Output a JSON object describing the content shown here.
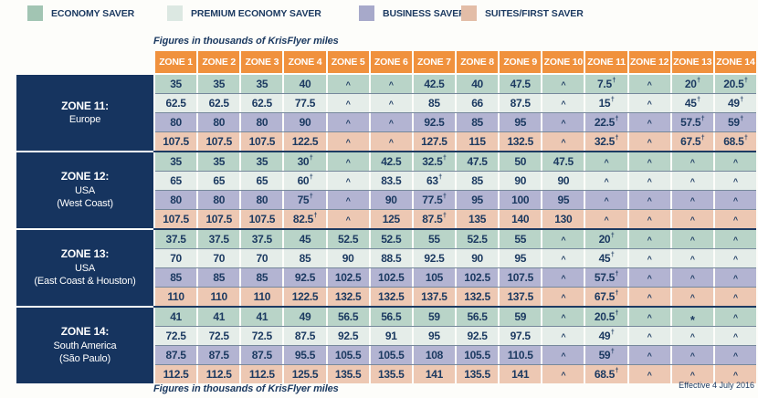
{
  "legend": {
    "items": [
      {
        "key": "economy",
        "label": "ECONOMY SAVER",
        "color": "#a2c5b3"
      },
      {
        "key": "premium_economy",
        "label": "PREMIUM ECONOMY SAVER",
        "color": "#dce8e2"
      },
      {
        "key": "business",
        "label": "BUSINESS SAVER",
        "color": "#a7a9ca"
      },
      {
        "key": "suites_first",
        "label": "SUITES/FIRST SAVER",
        "color": "#e3bda7"
      }
    ]
  },
  "notes": {
    "top": "Figures in thousands of KrisFlyer miles",
    "bottom": "Figures in thousands of KrisFlyer miles",
    "effective": "Effective 4 July 2016"
  },
  "colors": {
    "header_bg": "#f0913d",
    "header_text": "#ffffff",
    "zone_label_bg": "#16345f",
    "cell_text": "#1c3a61",
    "row_separator": "#76889b",
    "group_separator": "#1d3a62",
    "cells": {
      "economy": "#b9d4c8",
      "premium_economy": "#e5ede9",
      "business": "#b3b4d2",
      "suites_first": "#edc8b3"
    }
  },
  "table": {
    "column_headers": [
      "ZONE 1",
      "ZONE 2",
      "ZONE 3",
      "ZONE 4",
      "ZONE 5",
      "ZONE 6",
      "ZONE 7",
      "ZONE 8",
      "ZONE 9",
      "ZONE 10",
      "ZONE 11",
      "ZONE 12",
      "ZONE 13",
      "ZONE 14"
    ],
    "row_classes": [
      "economy",
      "premium_economy",
      "business",
      "suites_first"
    ],
    "groups": [
      {
        "zone": "ZONE 11:",
        "region_lines": [
          "Europe"
        ],
        "rows": [
          [
            "35",
            "35",
            "35",
            "40",
            "^",
            "^",
            "42.5",
            "40",
            "47.5",
            "^",
            "7.5†",
            "^",
            "20†",
            "20.5†"
          ],
          [
            "62.5",
            "62.5",
            "62.5",
            "77.5",
            "^",
            "^",
            "85",
            "66",
            "87.5",
            "^",
            "15†",
            "^",
            "45†",
            "49†"
          ],
          [
            "80",
            "80",
            "80",
            "90",
            "^",
            "^",
            "92.5",
            "85",
            "95",
            "^",
            "22.5†",
            "^",
            "57.5†",
            "59†"
          ],
          [
            "107.5",
            "107.5",
            "107.5",
            "122.5",
            "^",
            "^",
            "127.5",
            "115",
            "132.5",
            "^",
            "32.5†",
            "^",
            "67.5†",
            "68.5†"
          ]
        ]
      },
      {
        "zone": "ZONE 12:",
        "region_lines": [
          "USA",
          "(West Coast)"
        ],
        "rows": [
          [
            "35",
            "35",
            "35",
            "30†",
            "^",
            "42.5",
            "32.5†",
            "47.5",
            "50",
            "47.5",
            "^",
            "^",
            "^",
            "^"
          ],
          [
            "65",
            "65",
            "65",
            "60†",
            "^",
            "83.5",
            "63†",
            "85",
            "90",
            "90",
            "^",
            "^",
            "^",
            "^"
          ],
          [
            "80",
            "80",
            "80",
            "75†",
            "^",
            "90",
            "77.5†",
            "95",
            "100",
            "95",
            "^",
            "^",
            "^",
            "^"
          ],
          [
            "107.5",
            "107.5",
            "107.5",
            "82.5†",
            "^",
            "125",
            "87.5†",
            "135",
            "140",
            "130",
            "^",
            "^",
            "^",
            "^"
          ]
        ]
      },
      {
        "zone": "ZONE 13:",
        "region_lines": [
          "USA",
          "(East Coast & Houston)"
        ],
        "rows": [
          [
            "37.5",
            "37.5",
            "37.5",
            "45",
            "52.5",
            "52.5",
            "55",
            "52.5",
            "55",
            "^",
            "20†",
            "^",
            "^",
            "^"
          ],
          [
            "70",
            "70",
            "70",
            "85",
            "90",
            "88.5",
            "92.5",
            "90",
            "95",
            "^",
            "45†",
            "^",
            "^",
            "^"
          ],
          [
            "85",
            "85",
            "85",
            "92.5",
            "102.5",
            "102.5",
            "105",
            "102.5",
            "107.5",
            "^",
            "57.5†",
            "^",
            "^",
            "^"
          ],
          [
            "110",
            "110",
            "110",
            "122.5",
            "132.5",
            "132.5",
            "137.5",
            "132.5",
            "137.5",
            "^",
            "67.5†",
            "^",
            "^",
            "^"
          ]
        ]
      },
      {
        "zone": "ZONE 14:",
        "region_lines": [
          "South America",
          "(São Paulo)"
        ],
        "rows": [
          [
            "41",
            "41",
            "41",
            "49",
            "56.5",
            "56.5",
            "59",
            "56.5",
            "59",
            "^",
            "20.5†",
            "^",
            "*",
            "^"
          ],
          [
            "72.5",
            "72.5",
            "72.5",
            "87.5",
            "92.5",
            "91",
            "95",
            "92.5",
            "97.5",
            "^",
            "49†",
            "^",
            "^",
            "^"
          ],
          [
            "87.5",
            "87.5",
            "87.5",
            "95.5",
            "105.5",
            "105.5",
            "108",
            "105.5",
            "110.5",
            "^",
            "59†",
            "^",
            "^",
            "^"
          ],
          [
            "112.5",
            "112.5",
            "112.5",
            "125.5",
            "135.5",
            "135.5",
            "141",
            "135.5",
            "141",
            "^",
            "68.5†",
            "^",
            "^",
            "^"
          ]
        ]
      }
    ]
  }
}
